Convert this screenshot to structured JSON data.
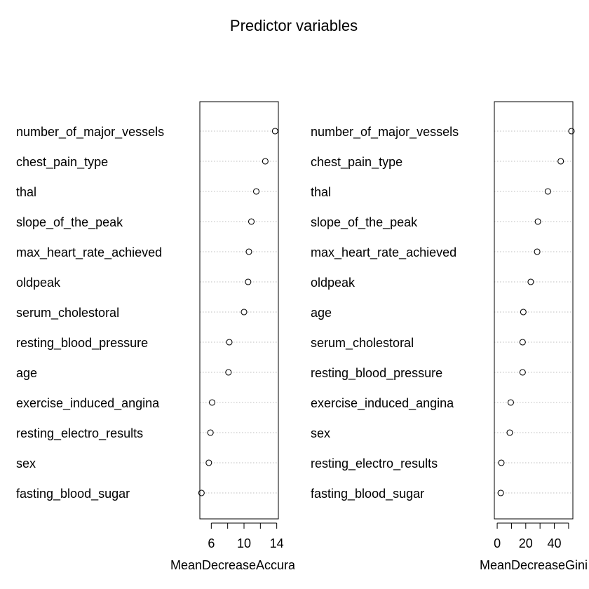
{
  "chart_data": {
    "title": "Predictor variables",
    "panels": [
      {
        "type": "dotchart",
        "xlabel": "MeanDecreaseAccuracy",
        "xlim": [
          4.6,
          14.2
        ],
        "ticks": [
          6,
          10,
          14
        ],
        "tick_labels": [
          "6",
          "10",
          "14"
        ],
        "minor_ticks": [
          8,
          12
        ],
        "categories": [
          "number_of_major_vessels",
          "chest_pain_type",
          "thal",
          "slope_of_the_peak",
          "max_heart_rate_achieved",
          "oldpeak",
          "serum_cholestoral",
          "resting_blood_pressure",
          "age",
          "exercise_induced_angina",
          "resting_electro_results",
          "sex",
          "fasting_blood_sugar"
        ],
        "values": [
          13.8,
          12.6,
          11.5,
          10.9,
          10.6,
          10.5,
          10.0,
          8.2,
          8.1,
          6.1,
          5.9,
          5.7,
          4.8
        ]
      },
      {
        "type": "dotchart",
        "xlabel": "MeanDecreaseGini",
        "xlim": [
          -2,
          53
        ],
        "ticks": [
          0,
          20,
          40
        ],
        "tick_labels": [
          "0",
          "20",
          "40"
        ],
        "minor_ticks": [
          10,
          30,
          50
        ],
        "categories": [
          "number_of_major_vessels",
          "chest_pain_type",
          "thal",
          "slope_of_the_peak",
          "max_heart_rate_achieved",
          "oldpeak",
          "age",
          "serum_cholestoral",
          "resting_blood_pressure",
          "exercise_induced_angina",
          "sex",
          "resting_electro_results",
          "fasting_blood_sugar"
        ],
        "values": [
          52.0,
          44.5,
          35.5,
          28.5,
          28.0,
          23.5,
          18.3,
          17.8,
          17.8,
          9.5,
          8.8,
          2.9,
          2.5
        ]
      }
    ]
  }
}
